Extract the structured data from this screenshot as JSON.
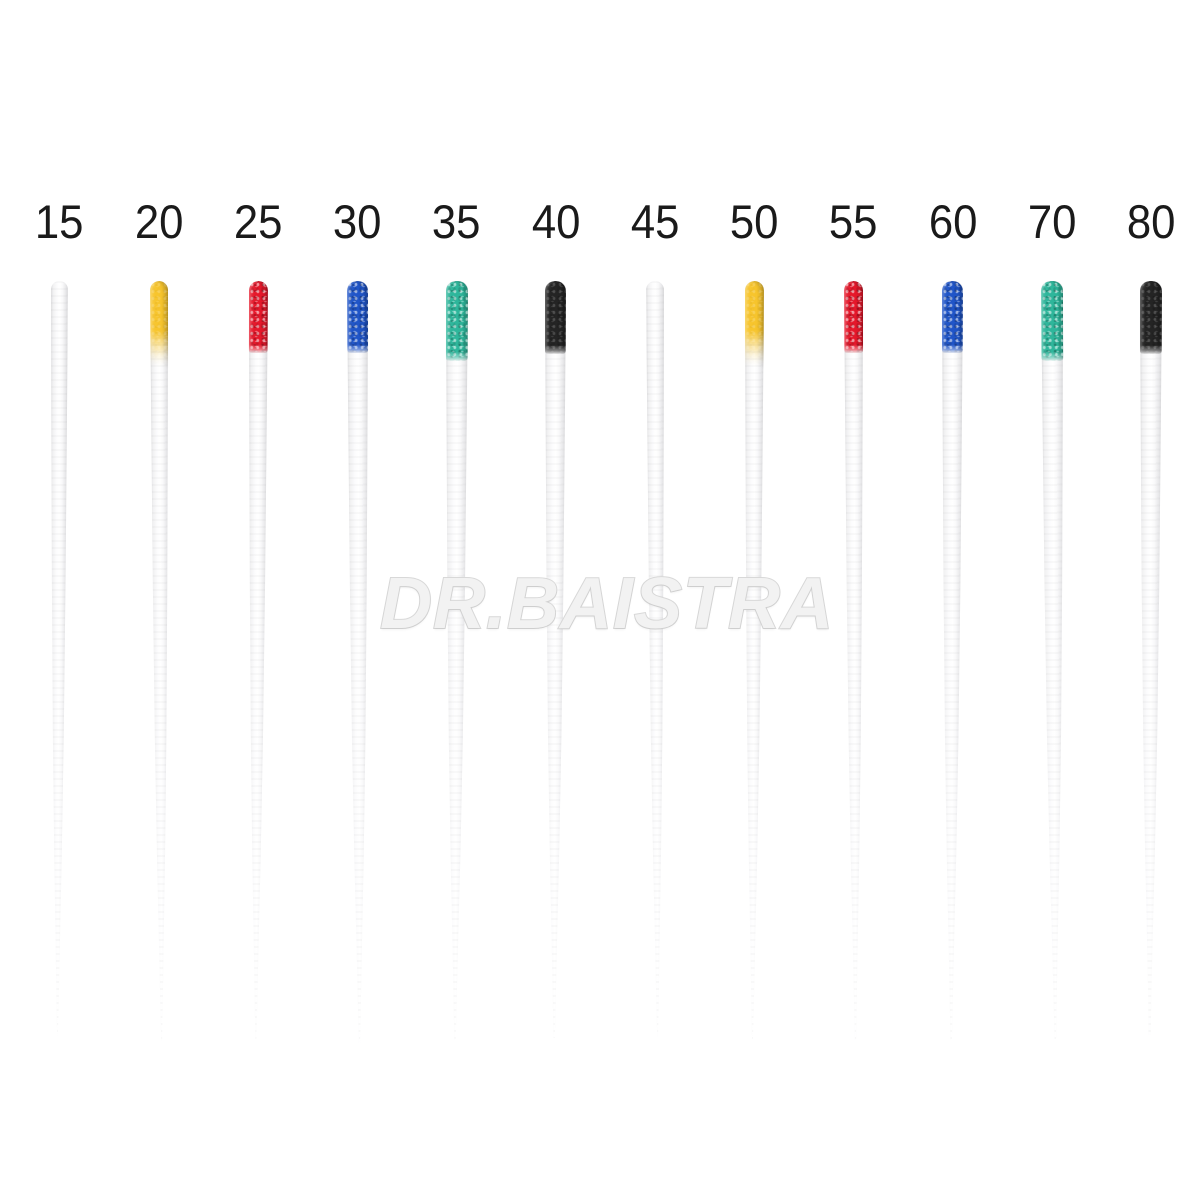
{
  "product_photo": {
    "watermark": "DR.BAISTRA",
    "background_color": "#ffffff",
    "label_color": "#1a1a1a",
    "tip_palette": {
      "white": "#ffffff",
      "yellow": "#f7c52d",
      "red": "#e6182b",
      "blue": "#2055c8",
      "green": "#2eb69b",
      "black": "#242424"
    },
    "points": [
      {
        "label": "15",
        "tip_color_name": "white",
        "tip_color": "#ffffff"
      },
      {
        "label": "20",
        "tip_color_name": "yellow",
        "tip_color": "#f7c52d"
      },
      {
        "label": "25",
        "tip_color_name": "red",
        "tip_color": "#e6182b"
      },
      {
        "label": "30",
        "tip_color_name": "blue",
        "tip_color": "#2055c8"
      },
      {
        "label": "35",
        "tip_color_name": "green",
        "tip_color": "#2eb69b"
      },
      {
        "label": "40",
        "tip_color_name": "black",
        "tip_color": "#242424"
      },
      {
        "label": "45",
        "tip_color_name": "white",
        "tip_color": "#ffffff"
      },
      {
        "label": "50",
        "tip_color_name": "yellow",
        "tip_color": "#f7c52d"
      },
      {
        "label": "55",
        "tip_color_name": "red",
        "tip_color": "#e6182b"
      },
      {
        "label": "60",
        "tip_color_name": "blue",
        "tip_color": "#2055c8"
      },
      {
        "label": "70",
        "tip_color_name": "green",
        "tip_color": "#2eb69b"
      },
      {
        "label": "80",
        "tip_color_name": "black",
        "tip_color": "#242424"
      }
    ]
  }
}
